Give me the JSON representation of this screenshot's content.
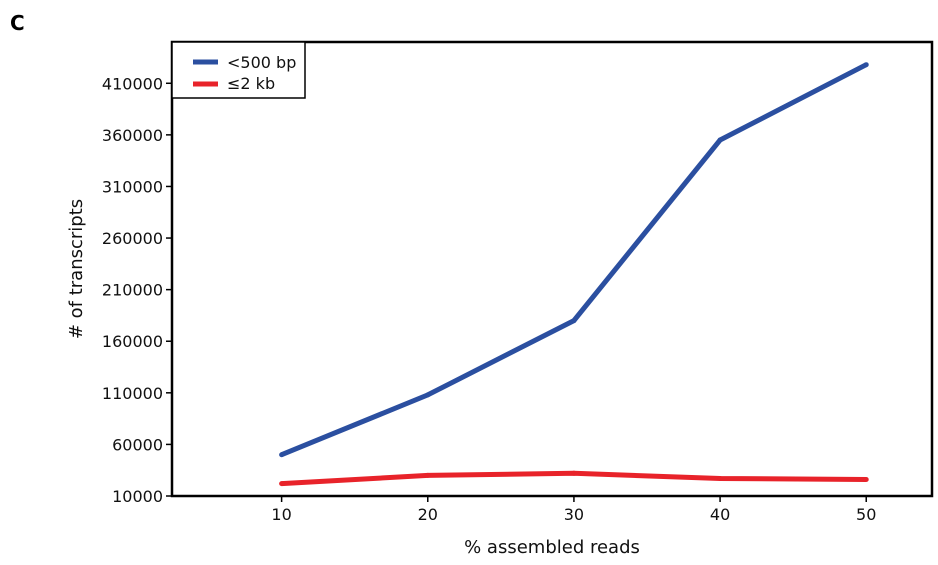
{
  "panel_label": "C",
  "chart_data": {
    "type": "line",
    "title": "",
    "xlabel": "% assembled reads",
    "ylabel": "# of transcripts",
    "x": [
      10,
      20,
      30,
      40,
      50
    ],
    "x_ticks": [
      "10",
      "20",
      "30",
      "40",
      "50"
    ],
    "y_ticks": [
      "10000",
      "60000",
      "110000",
      "160000",
      "210000",
      "260000",
      "310000",
      "360000",
      "410000"
    ],
    "xlim": [
      2.5,
      54.5
    ],
    "ylim": [
      10000,
      450000
    ],
    "grid": false,
    "legend_position": "top-left",
    "series": [
      {
        "name": "<500 bp",
        "color": "#2b4fa0",
        "values": [
          50000,
          108000,
          180000,
          355000,
          428000
        ]
      },
      {
        "name": "≤2 kb",
        "color": "#e8232a",
        "values": [
          22000,
          30000,
          32000,
          27000,
          26000
        ]
      }
    ]
  }
}
